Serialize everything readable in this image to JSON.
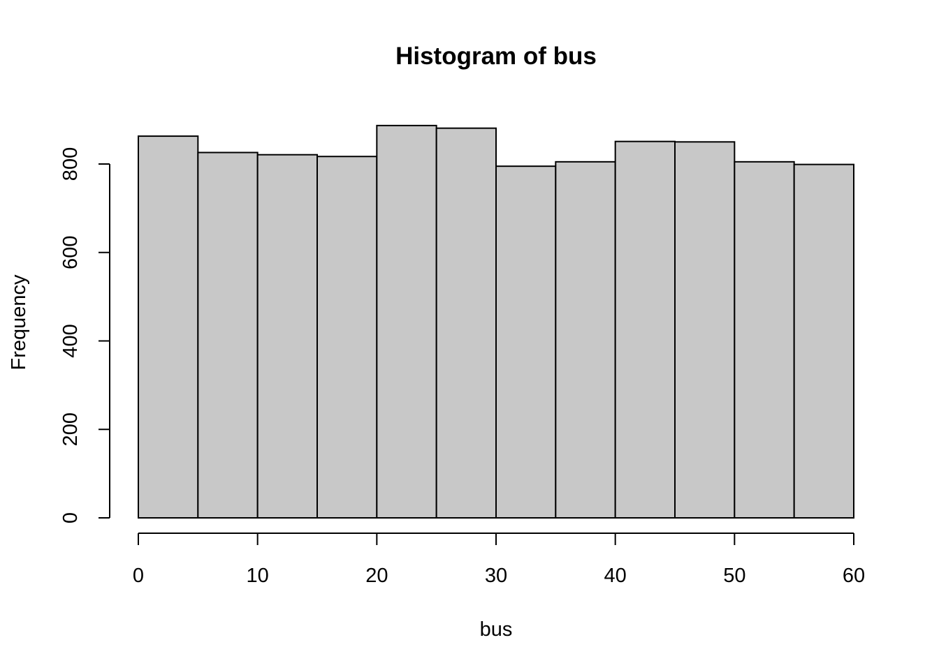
{
  "chart_data": {
    "type": "bar",
    "title": "Histogram of bus",
    "xlabel": "bus",
    "ylabel": "Frequency",
    "bin_edges": [
      0,
      5,
      10,
      15,
      20,
      25,
      30,
      35,
      40,
      45,
      50,
      55,
      60
    ],
    "values": [
      863,
      826,
      821,
      817,
      887,
      881,
      795,
      805,
      851,
      850,
      805,
      799
    ],
    "xlim": [
      0,
      60
    ],
    "ylim": [
      0,
      887
    ],
    "x_ticks": [
      0,
      10,
      20,
      30,
      40,
      50,
      60
    ],
    "y_ticks": [
      0,
      200,
      400,
      600,
      800
    ],
    "x_tick_labels": [
      "0",
      "10",
      "20",
      "30",
      "40",
      "50",
      "60"
    ],
    "y_tick_labels": [
      "0",
      "200",
      "400",
      "600",
      "800"
    ],
    "grid": false,
    "bar_color": "#c8c8c8",
    "edge_color": "#000000"
  }
}
